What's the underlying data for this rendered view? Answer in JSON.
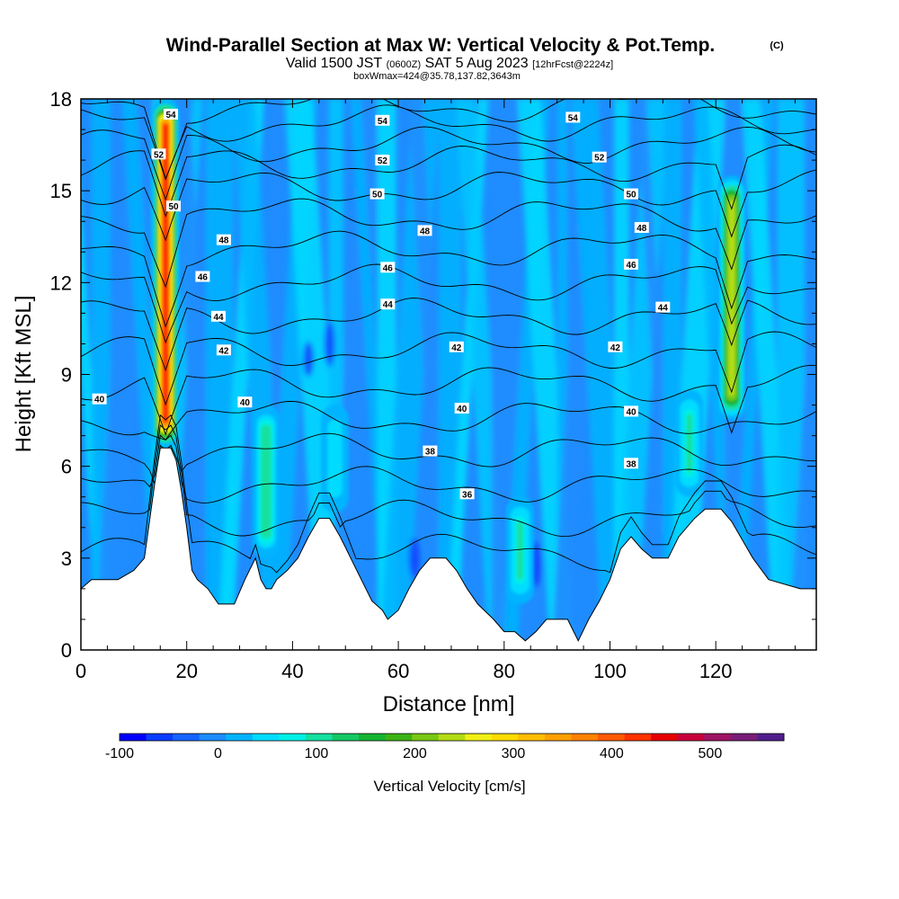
{
  "title": {
    "main": "Wind-Parallel Section at Max W: Vertical Velocity & Pot.Temp.",
    "copyright": "(C)",
    "valid_prefix": "Valid 1500 JST",
    "valid_utc": "(0600Z)",
    "valid_date": "SAT 5 Aug 2023",
    "forecast": "[12hrFcst@2224z]",
    "box_info": "boxWmax=424@35.78,137.82,3643m"
  },
  "chart_data": {
    "type": "heatmap",
    "xlabel": "Distance [nm]",
    "ylabel": "Height [Kft MSL]",
    "xlim": [
      0,
      139
    ],
    "ylim": [
      0,
      18
    ],
    "x_ticks": [
      "0",
      "20",
      "40",
      "60",
      "80",
      "100",
      "120"
    ],
    "y_ticks": [
      "0",
      "3",
      "6",
      "9",
      "12",
      "15",
      "18"
    ],
    "colorbar": {
      "label": "Vertical Velocity [cm/s]",
      "range": [
        -100,
        575
      ],
      "ticks": [
        "-100",
        "0",
        "100",
        "200",
        "300",
        "400",
        "500"
      ],
      "colors": [
        "#0000ff",
        "#0a3cff",
        "#1464ff",
        "#1e8cff",
        "#00b4ff",
        "#00dcff",
        "#00f0e6",
        "#14e0a0",
        "#14c864",
        "#14b432",
        "#3cb414",
        "#78c814",
        "#b4dc14",
        "#f0f014",
        "#ffdc00",
        "#ffbe00",
        "#ffa000",
        "#ff8200",
        "#ff5a00",
        "#ff3200",
        "#e60000",
        "#c8003c",
        "#a01464",
        "#781e78",
        "#501e8c"
      ]
    },
    "terrain_kft": [
      [
        0,
        2
      ],
      [
        2,
        2.3
      ],
      [
        7,
        2.3
      ],
      [
        10,
        2.6
      ],
      [
        12,
        3
      ],
      [
        14,
        5.5
      ],
      [
        15,
        6.6
      ],
      [
        17,
        6.6
      ],
      [
        18,
        6.2
      ],
      [
        19,
        5.2
      ],
      [
        20,
        4
      ],
      [
        21,
        2.6
      ],
      [
        22,
        2.3
      ],
      [
        24,
        2
      ],
      [
        26,
        1.5
      ],
      [
        29,
        1.5
      ],
      [
        31,
        2.3
      ],
      [
        33,
        3
      ],
      [
        34,
        2.3
      ],
      [
        35,
        2
      ],
      [
        36,
        2
      ],
      [
        37,
        2.3
      ],
      [
        39,
        2.6
      ],
      [
        41,
        3
      ],
      [
        43,
        3.7
      ],
      [
        45,
        4.3
      ],
      [
        47,
        4.3
      ],
      [
        49,
        3.7
      ],
      [
        51,
        3
      ],
      [
        53,
        2.3
      ],
      [
        55,
        1.6
      ],
      [
        57,
        1.3
      ],
      [
        58,
        1
      ],
      [
        60,
        1.3
      ],
      [
        62,
        2
      ],
      [
        64,
        2.6
      ],
      [
        66,
        3
      ],
      [
        69,
        3
      ],
      [
        71,
        2.6
      ],
      [
        73,
        2
      ],
      [
        75,
        1.5
      ],
      [
        78,
        1
      ],
      [
        80,
        0.6
      ],
      [
        82,
        0.6
      ],
      [
        84,
        0.3
      ],
      [
        86,
        0.6
      ],
      [
        88,
        1
      ],
      [
        92,
        1
      ],
      [
        94,
        0.3
      ],
      [
        96,
        1
      ],
      [
        98,
        1.6
      ],
      [
        100,
        2.3
      ],
      [
        102,
        3.3
      ],
      [
        104,
        3.7
      ],
      [
        106,
        3.3
      ],
      [
        108,
        3
      ],
      [
        111,
        3
      ],
      [
        113,
        3.7
      ],
      [
        116,
        4.3
      ],
      [
        118,
        4.6
      ],
      [
        121,
        4.6
      ],
      [
        123,
        4.2
      ],
      [
        125,
        3.6
      ],
      [
        127,
        3
      ],
      [
        130,
        2.3
      ],
      [
        136,
        2
      ],
      [
        139,
        2
      ]
    ],
    "theta_levels_K": [
      36,
      38,
      40,
      42,
      44,
      46,
      48,
      50,
      52,
      54
    ],
    "contour_labels": [
      {
        "text": "54",
        "x": 17,
        "y": 17.5
      },
      {
        "text": "52",
        "x": 14.7,
        "y": 16.2
      },
      {
        "text": "50",
        "x": 17.5,
        "y": 14.5
      },
      {
        "text": "48",
        "x": 27,
        "y": 13.4
      },
      {
        "text": "46",
        "x": 23,
        "y": 12.2
      },
      {
        "text": "44",
        "x": 26,
        "y": 10.9
      },
      {
        "text": "42",
        "x": 27,
        "y": 9.8
      },
      {
        "text": "40",
        "x": 3.5,
        "y": 8.2
      },
      {
        "text": "40",
        "x": 31,
        "y": 8.1
      },
      {
        "text": "54",
        "x": 57,
        "y": 17.3
      },
      {
        "text": "52",
        "x": 57,
        "y": 16.0
      },
      {
        "text": "50",
        "x": 56,
        "y": 14.9
      },
      {
        "text": "48",
        "x": 65,
        "y": 13.7
      },
      {
        "text": "46",
        "x": 58,
        "y": 12.5
      },
      {
        "text": "44",
        "x": 58,
        "y": 11.3
      },
      {
        "text": "42",
        "x": 71,
        "y": 9.9
      },
      {
        "text": "40",
        "x": 72,
        "y": 7.9
      },
      {
        "text": "38",
        "x": 66,
        "y": 6.5
      },
      {
        "text": "36",
        "x": 73,
        "y": 5.1
      },
      {
        "text": "54",
        "x": 93,
        "y": 17.4
      },
      {
        "text": "52",
        "x": 98,
        "y": 16.1
      },
      {
        "text": "50",
        "x": 104,
        "y": 14.9
      },
      {
        "text": "48",
        "x": 106,
        "y": 13.8
      },
      {
        "text": "46",
        "x": 104,
        "y": 12.6
      },
      {
        "text": "44",
        "x": 110,
        "y": 11.2
      },
      {
        "text": "42",
        "x": 101,
        "y": 9.9
      },
      {
        "text": "40",
        "x": 104,
        "y": 7.8
      },
      {
        "text": "38",
        "x": 104,
        "y": 6.1
      }
    ],
    "w_max_cm_s": 424,
    "updraft_cores": [
      {
        "x": 16,
        "y_bottom": 6.6,
        "y_top": 18,
        "peak_cm_s": 424
      },
      {
        "x": 123,
        "y_bottom": 7.5,
        "y_top": 15.5,
        "peak_cm_s": 250
      },
      {
        "x": 35,
        "y_bottom": 3,
        "y_top": 8,
        "peak_cm_s": 110
      },
      {
        "x": 83,
        "y_bottom": 1.5,
        "y_top": 5,
        "peak_cm_s": 90
      },
      {
        "x": 115,
        "y_bottom": 5,
        "y_top": 8.5,
        "peak_cm_s": 90
      },
      {
        "x": 48,
        "y_bottom": 4.5,
        "y_top": 8,
        "peak_cm_s": 60
      }
    ]
  }
}
